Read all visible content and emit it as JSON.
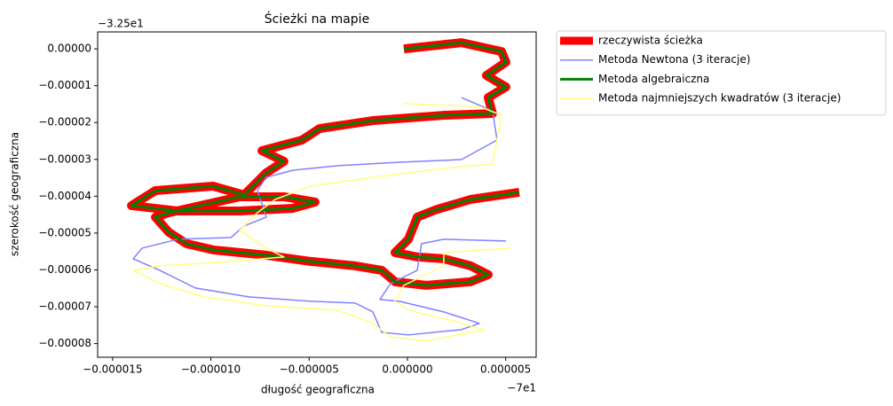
{
  "chart_data": {
    "type": "line",
    "title": "Ścieżki na mapie",
    "x_label": "długość geograficzna",
    "y_label": "szerokość geograficzna",
    "x_offset_label": "−7e1",
    "y_offset_label": "−3.25e1",
    "xlim": [
      -1.576e-05,
      6.55e-06
    ],
    "ylim": [
      -8.37e-05,
      4.6e-06
    ],
    "xticks": [
      {
        "value": -1.5e-05,
        "label": "−0.000015"
      },
      {
        "value": -1e-05,
        "label": "−0.000010"
      },
      {
        "value": -5e-06,
        "label": "−0.000005"
      },
      {
        "value": 0,
        "label": "0.000000"
      },
      {
        "value": 5e-06,
        "label": "0.000005"
      }
    ],
    "yticks": [
      {
        "value": 0,
        "label": "0.00000"
      },
      {
        "value": -1e-05,
        "label": "−0.00001"
      },
      {
        "value": -2e-05,
        "label": "−0.00002"
      },
      {
        "value": -3e-05,
        "label": "−0.00003"
      },
      {
        "value": -4e-05,
        "label": "−0.00004"
      },
      {
        "value": -5e-05,
        "label": "−0.00005"
      },
      {
        "value": -6e-05,
        "label": "−0.00006"
      },
      {
        "value": -7e-05,
        "label": "−0.00007"
      },
      {
        "value": -8e-05,
        "label": "−0.00008"
      }
    ],
    "legend": "outside-upper-right",
    "series": [
      {
        "name": "rzeczywista ścieżka",
        "color": "#ff0000",
        "linewidth": 10,
        "x": [
          -1.8e-07,
          2.75e-06,
          4.79e-06,
          5.01e-06,
          4.02e-06,
          5.01e-06,
          4.11e-06,
          4.33e-06,
          1.85e-06,
          -1.76e-06,
          -4.47e-06,
          -5.37e-06,
          -7.4e-06,
          -6.28e-06,
          -7.18e-06,
          -7.86e-06,
          -8.31e-06,
          -9.89e-06,
          -1.282e-05,
          -1.404e-05,
          -1.169e-05,
          -8.53e-06,
          -5.82e-06,
          -4.7e-06,
          -6.28e-06,
          -8.53e-06,
          -1.214e-05,
          -1.282e-05,
          -1.214e-05,
          -1.124e-05,
          -9.89e-06,
          -7.18e-06,
          -4.92e-06,
          -2.66e-06,
          -1.31e-06,
          -6.3e-07,
          9.5e-07,
          3.21e-06,
          4.11e-06,
          3.21e-06,
          1.85e-06,
          5e-07,
          -6.3e-07,
          5e-08,
          5e-07,
          1.4e-06,
          3.21e-06,
          5.69e-06
        ],
        "y": [
          0,
          1.68e-06,
          -7.2e-07,
          -3.61e-06,
          -7.21e-06,
          -1.034e-05,
          -1.322e-05,
          -1.755e-05,
          -1.803e-05,
          -1.947e-05,
          -2.163e-05,
          -2.476e-05,
          -2.764e-05,
          -3.053e-05,
          -3.365e-05,
          -3.726e-05,
          -3.966e-05,
          -3.726e-05,
          -3.846e-05,
          -4.255e-05,
          -4.399e-05,
          -4.399e-05,
          -4.327e-05,
          -4.159e-05,
          -4.014e-05,
          -4.014e-05,
          -4.447e-05,
          -4.567e-05,
          -4.976e-05,
          -5.288e-05,
          -5.457e-05,
          -5.601e-05,
          -5.769e-05,
          -5.889e-05,
          -6.01e-05,
          -6.322e-05,
          -6.418e-05,
          -6.322e-05,
          -6.13e-05,
          -5.889e-05,
          -5.697e-05,
          -5.649e-05,
          -5.529e-05,
          -5.168e-05,
          -4.567e-05,
          -4.375e-05,
          -4.087e-05,
          -3.894e-05
        ]
      },
      {
        "name": "Metoda Newtona (3 iteracje)",
        "color": "#8080ff",
        "linewidth": 1.5,
        "x": [
          2.75e-06,
          4.33e-06,
          4.56e-06,
          2.75e-06,
          -4.1e-07,
          -3.57e-06,
          -5.82e-06,
          -7.18e-06,
          -7.63e-06,
          -7.4e-06,
          -7.18e-06,
          -8.31e-06,
          -8.98e-06,
          -1.169e-05,
          -1.35e-05,
          -1.395e-05,
          -1.26e-05,
          -1.079e-05,
          -8.08e-06,
          -4.92e-06,
          -2.66e-06,
          -1.76e-06,
          -1.31e-06,
          5e-08,
          2.75e-06,
          3.66e-06,
          1.85e-06,
          -4.1e-07,
          -1.4e-06,
          -8.6e-07,
          5e-07,
          7.2e-07,
          1.85e-06,
          5.01e-06
        ],
        "y": [
          -1.322e-05,
          -1.683e-05,
          -2.476e-05,
          -3.005e-05,
          -3.077e-05,
          -3.173e-05,
          -3.293e-05,
          -3.486e-05,
          -3.846e-05,
          -4.207e-05,
          -4.567e-05,
          -4.808e-05,
          -5.12e-05,
          -5.168e-05,
          -5.409e-05,
          -5.697e-05,
          -6.01e-05,
          -6.49e-05,
          -6.731e-05,
          -6.851e-05,
          -6.899e-05,
          -7.139e-05,
          -7.692e-05,
          -7.764e-05,
          -7.62e-05,
          -7.452e-05,
          -7.139e-05,
          -6.851e-05,
          -6.803e-05,
          -6.37e-05,
          -6.01e-05,
          -5.288e-05,
          -5.168e-05,
          -5.216e-05
        ]
      },
      {
        "name": "Metoda algebraiczna",
        "color": "#008000",
        "linewidth": 3,
        "x": [
          -1.8e-07,
          2.75e-06,
          4.79e-06,
          5.01e-06,
          4.02e-06,
          5.01e-06,
          4.11e-06,
          4.33e-06,
          1.85e-06,
          -1.76e-06,
          -4.47e-06,
          -5.37e-06,
          -7.4e-06,
          -6.28e-06,
          -7.18e-06,
          -7.86e-06,
          -8.31e-06,
          -9.89e-06,
          -1.282e-05,
          -1.404e-05,
          -1.169e-05,
          -8.53e-06,
          -5.82e-06,
          -4.7e-06,
          -6.28e-06,
          -8.53e-06,
          -1.214e-05,
          -1.282e-05,
          -1.214e-05,
          -1.124e-05,
          -9.89e-06,
          -7.18e-06,
          -4.92e-06,
          -2.66e-06,
          -1.31e-06,
          -6.3e-07,
          9.5e-07,
          3.21e-06,
          4.11e-06,
          3.21e-06,
          1.85e-06,
          5e-07,
          -6.3e-07,
          5e-08,
          5e-07,
          1.4e-06,
          3.21e-06,
          5.69e-06
        ],
        "y": [
          0,
          1.68e-06,
          -7.2e-07,
          -3.61e-06,
          -7.21e-06,
          -1.034e-05,
          -1.322e-05,
          -1.755e-05,
          -1.803e-05,
          -1.947e-05,
          -2.163e-05,
          -2.476e-05,
          -2.764e-05,
          -3.053e-05,
          -3.365e-05,
          -3.726e-05,
          -3.966e-05,
          -3.726e-05,
          -3.846e-05,
          -4.255e-05,
          -4.399e-05,
          -4.399e-05,
          -4.327e-05,
          -4.159e-05,
          -4.014e-05,
          -4.014e-05,
          -4.447e-05,
          -4.567e-05,
          -4.976e-05,
          -5.288e-05,
          -5.457e-05,
          -5.601e-05,
          -5.769e-05,
          -5.889e-05,
          -6.01e-05,
          -6.322e-05,
          -6.418e-05,
          -6.322e-05,
          -6.13e-05,
          -5.889e-05,
          -5.697e-05,
          -5.649e-05,
          -5.529e-05,
          -5.168e-05,
          -4.567e-05,
          -4.375e-05,
          -4.087e-05,
          -3.894e-05
        ]
      },
      {
        "name": "Metoda najmniejszych kwadratów (3 iteracje)",
        "color": "#ffff80",
        "linewidth": 1.5,
        "x": [
          -1.8e-07,
          3.66e-06,
          4.79e-06,
          4.33e-06,
          1.85e-06,
          -1.76e-06,
          -4.92e-06,
          -6.73e-06,
          -7.63e-06,
          -8.53e-06,
          -7.18e-06,
          -6.28e-06,
          -8.98e-06,
          -1.26e-05,
          -1.395e-05,
          -1.26e-05,
          -1.034e-05,
          -7.18e-06,
          -3.57e-06,
          -1.76e-06,
          -8.6e-07,
          9.5e-07,
          3.88e-06,
          2.3e-06,
          5e-08,
          -6.3e-07,
          -1.8e-07,
          1.85e-06,
          1.85e-06,
          5.24e-06
        ],
        "y": [
          -1.49e-05,
          -1.563e-05,
          -1.803e-05,
          -3.125e-05,
          -3.245e-05,
          -3.486e-05,
          -3.726e-05,
          -4.087e-05,
          -4.447e-05,
          -4.928e-05,
          -5.409e-05,
          -5.649e-05,
          -5.769e-05,
          -5.889e-05,
          -6.01e-05,
          -6.37e-05,
          -6.731e-05,
          -6.971e-05,
          -7.091e-05,
          -7.452e-05,
          -7.813e-05,
          -7.933e-05,
          -7.62e-05,
          -7.38e-05,
          -7.091e-05,
          -6.851e-05,
          -6.418e-05,
          -5.889e-05,
          -5.529e-05,
          -5.409e-05
        ]
      }
    ]
  }
}
